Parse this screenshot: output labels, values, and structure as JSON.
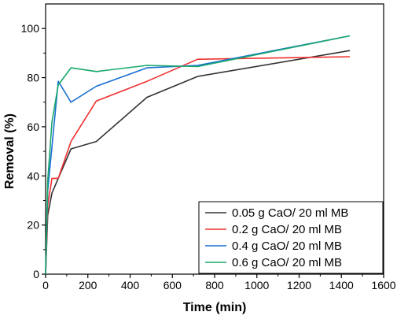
{
  "chart_data": {
    "type": "line",
    "title": "",
    "xlabel": "Time (min)",
    "ylabel": "Removal (%)",
    "xlim": [
      0,
      1600
    ],
    "ylim": [
      0,
      110
    ],
    "x_ticks": [
      0,
      200,
      400,
      600,
      800,
      1000,
      1200,
      1400,
      1600
    ],
    "y_ticks": [
      0,
      20,
      40,
      60,
      80,
      100
    ],
    "grid": false,
    "legend_position": "bottom-right",
    "series": [
      {
        "name": "0.05 g CaO/ 20 ml MB",
        "color": "#333333",
        "x": [
          0,
          10,
          30,
          60,
          120,
          240,
          480,
          720,
          1440
        ],
        "y": [
          0,
          24,
          33,
          39,
          51,
          54,
          72,
          80.5,
          91
        ]
      },
      {
        "name": "0.2 g CaO/ 20 ml MB",
        "color": "#ee3030",
        "x": [
          0,
          10,
          30,
          60,
          120,
          240,
          480,
          720,
          1440
        ],
        "y": [
          0,
          28,
          39,
          39,
          54,
          70.5,
          78.5,
          87.5,
          88.5
        ]
      },
      {
        "name": "0.4 g CaO/ 20 ml MB",
        "color": "#1a6fd1",
        "x": [
          0,
          10,
          30,
          60,
          120,
          240,
          480,
          720,
          1440
        ],
        "y": [
          0,
          34,
          52,
          78.5,
          70,
          76.5,
          84,
          85,
          97
        ]
      },
      {
        "name": "0.6 g CaO/ 20 ml MB",
        "color": "#18a86c",
        "x": [
          0,
          10,
          30,
          60,
          120,
          240,
          480,
          720,
          1440
        ],
        "y": [
          0,
          38,
          62,
          77,
          84,
          82.5,
          85,
          84.5,
          97
        ]
      }
    ]
  }
}
